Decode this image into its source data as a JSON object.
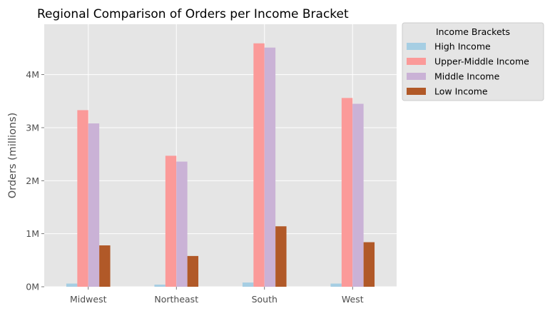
{
  "chart_data": {
    "type": "bar",
    "title": "Regional Comparison of Orders per Income Bracket",
    "xlabel": "",
    "ylabel": "Orders (millions)",
    "categories": [
      "Midwest",
      "Northeast",
      "South",
      "West"
    ],
    "ylim": [
      0,
      4.95
    ],
    "yticks": [
      0,
      1,
      2,
      3,
      4
    ],
    "ytick_labels": [
      "0M",
      "1M",
      "2M",
      "3M",
      "4M"
    ],
    "grid": true,
    "legend": {
      "title": "Income Brackets",
      "position": "outside-upper-right"
    },
    "series": [
      {
        "name": "High Income",
        "color": "#a6cee3",
        "values": [
          0.06,
          0.04,
          0.08,
          0.06
        ]
      },
      {
        "name": "Upper-Middle Income",
        "color": "#fb9a99",
        "values": [
          3.33,
          2.47,
          4.59,
          3.56
        ]
      },
      {
        "name": "Middle Income",
        "color": "#cab2d6",
        "values": [
          3.08,
          2.36,
          4.51,
          3.45
        ]
      },
      {
        "name": "Low Income",
        "color": "#b15928",
        "values": [
          0.78,
          0.58,
          1.14,
          0.84
        ]
      }
    ]
  }
}
